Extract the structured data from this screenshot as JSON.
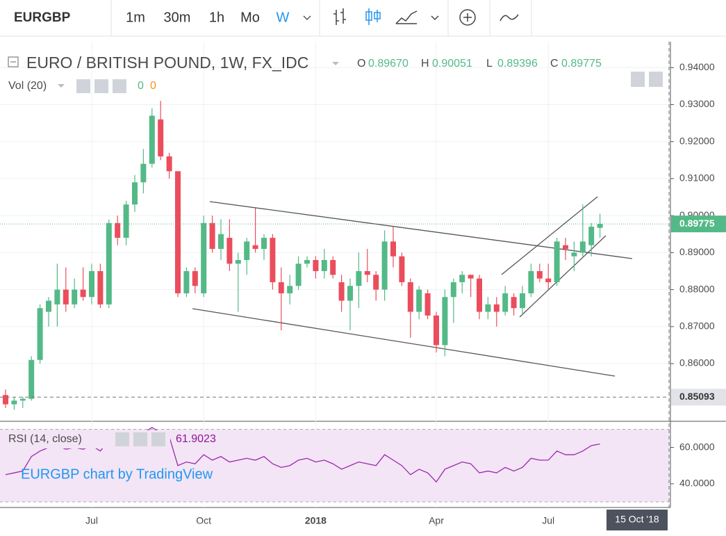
{
  "toolbar": {
    "symbol": "EURGBP",
    "intervals": [
      "1m",
      "30m",
      "1h",
      "Mo",
      "W"
    ],
    "active_interval": 4
  },
  "chart_data": [
    {
      "type": "candlestick",
      "title": "EURO / BRITISH POUND, 1W, FX_IDC",
      "ohlc_letters": [
        "O",
        "H",
        "L",
        "C"
      ],
      "ohlc_labels": [
        "0.89670",
        "0.90051",
        "0.89396",
        "0.89775"
      ],
      "volume_label": "Vol (20)",
      "volume_values": [
        0,
        0
      ],
      "up_color": "#53b987",
      "down_color": "#eb4d5c",
      "categories": [
        null,
        null,
        null,
        null,
        null,
        null,
        null,
        null,
        null,
        null,
        "Jul",
        null,
        null,
        null,
        null,
        null,
        null,
        null,
        null,
        null,
        null,
        null,
        null,
        "Oct",
        null,
        null,
        null,
        null,
        null,
        null,
        null,
        null,
        null,
        null,
        null,
        null,
        "2018",
        null,
        null,
        null,
        null,
        null,
        null,
        null,
        null,
        null,
        null,
        null,
        null,
        null,
        "Apr",
        null,
        null,
        null,
        null,
        null,
        null,
        null,
        null,
        null,
        null,
        null,
        null,
        "Jul",
        null,
        null,
        null,
        null,
        null,
        null
      ],
      "open": [
        0.8515,
        0.849,
        0.85,
        0.8505,
        0.861,
        0.874,
        0.876,
        0.88,
        0.876,
        0.88,
        0.878,
        0.885,
        0.876,
        0.898,
        0.894,
        0.903,
        0.909,
        0.914,
        0.926,
        0.916,
        0.912,
        0.879,
        0.885,
        0.879,
        0.898,
        0.891,
        0.894,
        0.887,
        0.888,
        0.892,
        0.891,
        0.894,
        0.882,
        0.879,
        0.881,
        0.887,
        0.888,
        0.885,
        0.888,
        0.882,
        0.877,
        0.881,
        0.885,
        0.884,
        0.88,
        0.893,
        0.889,
        0.882,
        0.874,
        0.879,
        0.873,
        0.865,
        0.878,
        0.882,
        0.884,
        0.883,
        0.874,
        0.876,
        0.874,
        0.878,
        0.875,
        0.879,
        0.885,
        0.883,
        0.882,
        0.892,
        0.889,
        0.89,
        0.892,
        0.8967
      ],
      "high": [
        0.853,
        0.851,
        0.851,
        0.862,
        0.876,
        0.878,
        0.887,
        0.886,
        0.883,
        0.886,
        0.887,
        0.887,
        0.899,
        0.9,
        0.904,
        0.911,
        0.918,
        0.929,
        0.931,
        0.917,
        0.912,
        0.886,
        0.886,
        0.9,
        0.9,
        0.899,
        0.899,
        0.89,
        0.894,
        0.902,
        0.895,
        0.895,
        0.886,
        0.884,
        0.889,
        0.889,
        0.889,
        0.891,
        0.889,
        0.884,
        0.883,
        0.89,
        0.891,
        0.885,
        0.896,
        0.897,
        0.89,
        0.883,
        0.881,
        0.88,
        0.874,
        0.88,
        0.883,
        0.885,
        0.884,
        0.884,
        0.878,
        0.878,
        0.881,
        0.879,
        0.881,
        0.887,
        0.887,
        0.887,
        0.894,
        0.894,
        0.893,
        0.903,
        0.898,
        0.90051
      ],
      "low": [
        0.848,
        0.8475,
        0.848,
        0.85,
        0.86,
        0.87,
        0.87,
        0.874,
        0.875,
        0.877,
        0.876,
        0.875,
        0.875,
        0.892,
        0.892,
        0.901,
        0.906,
        0.913,
        0.915,
        0.91,
        0.878,
        0.878,
        0.879,
        0.878,
        0.89,
        0.888,
        0.885,
        0.874,
        0.884,
        0.89,
        0.888,
        0.88,
        0.869,
        0.876,
        0.88,
        0.886,
        0.883,
        0.883,
        0.883,
        0.874,
        0.869,
        0.875,
        0.882,
        0.877,
        0.877,
        0.886,
        0.881,
        0.867,
        0.872,
        0.872,
        0.863,
        0.862,
        0.871,
        0.879,
        0.878,
        0.872,
        0.872,
        0.87,
        0.873,
        0.873,
        0.873,
        0.878,
        0.882,
        0.88,
        0.881,
        0.888,
        0.885,
        0.889,
        0.889,
        0.89396
      ],
      "close": [
        0.849,
        0.85,
        0.8505,
        0.861,
        0.875,
        0.877,
        0.88,
        0.876,
        0.88,
        0.878,
        0.885,
        0.876,
        0.898,
        0.894,
        0.903,
        0.909,
        0.914,
        0.927,
        0.916,
        0.912,
        0.879,
        0.885,
        0.881,
        0.898,
        0.891,
        0.895,
        0.887,
        0.888,
        0.893,
        0.891,
        0.894,
        0.882,
        0.879,
        0.881,
        0.887,
        0.888,
        0.885,
        0.888,
        0.884,
        0.877,
        0.881,
        0.885,
        0.884,
        0.88,
        0.893,
        0.889,
        0.882,
        0.874,
        0.88,
        0.873,
        0.865,
        0.878,
        0.882,
        0.884,
        0.883,
        0.874,
        0.876,
        0.874,
        0.879,
        0.875,
        0.879,
        0.885,
        0.883,
        0.882,
        0.893,
        0.891,
        0.89,
        0.893,
        0.897,
        0.89775
      ],
      "ylim": [
        0.8446,
        0.947
      ],
      "yticks": [
        {
          "value": 0.94,
          "label": "0.94000"
        },
        {
          "value": 0.93,
          "label": "0.93000"
        },
        {
          "value": 0.92,
          "label": "0.92000"
        },
        {
          "value": 0.91,
          "label": "0.91000"
        },
        {
          "value": 0.9,
          "label": "0.90000"
        },
        {
          "value": 0.89,
          "label": "0.89000"
        },
        {
          "value": 0.88,
          "label": "0.88000"
        },
        {
          "value": 0.87,
          "label": "0.87000"
        },
        {
          "value": 0.86,
          "label": "0.86000"
        }
      ],
      "marker_level": {
        "value": 0.85093,
        "label": "0.85093"
      },
      "cursor_label": "15 Oct '18",
      "grid": true
    },
    {
      "type": "line",
      "title": "RSI (14, close)",
      "watermark": "EURGBP chart by TradingView",
      "color": "#9c27b0",
      "band": [
        30,
        70
      ],
      "values": [
        45,
        46,
        47,
        55,
        58,
        60,
        61,
        59,
        60,
        59,
        61,
        58,
        64,
        63,
        65,
        67,
        68,
        71,
        68,
        66,
        50,
        52,
        51,
        56,
        53,
        55,
        52,
        53,
        54,
        53,
        55,
        51,
        49,
        50,
        53,
        54,
        52,
        53,
        51,
        48,
        50,
        52,
        51,
        50,
        56,
        53,
        50,
        45,
        48,
        46,
        41,
        48,
        50,
        52,
        51,
        46,
        47,
        46,
        49,
        47,
        49,
        54,
        53,
        53,
        58,
        56,
        56,
        58,
        61,
        61.9023
      ],
      "ylim": [
        30,
        74
      ],
      "yticks": [
        {
          "value": 60,
          "label": "60.0000"
        },
        {
          "value": 40,
          "label": "40.0000"
        }
      ]
    }
  ]
}
